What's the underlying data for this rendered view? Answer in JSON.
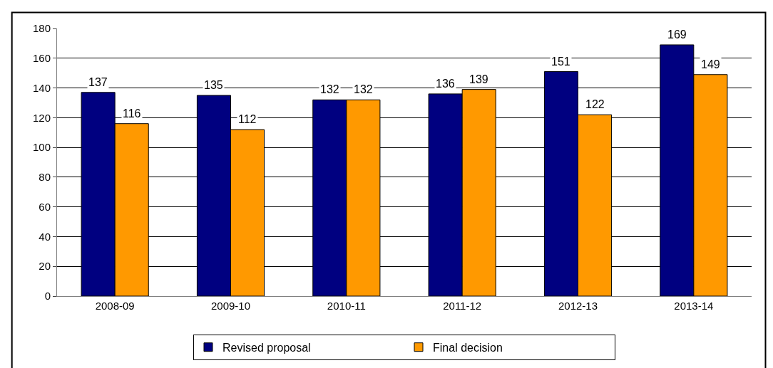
{
  "chart_data": {
    "type": "bar",
    "categories": [
      "2008-09",
      "2009-10",
      "2010-11",
      "2011-12",
      "2012-13",
      "2013-14"
    ],
    "series": [
      {
        "name": "Revised proposal",
        "color": "#000080",
        "values": [
          137,
          135,
          132,
          136,
          151,
          169
        ]
      },
      {
        "name": "Final decision",
        "color": "#ff9900",
        "values": [
          116,
          112,
          132,
          139,
          122,
          149
        ]
      }
    ],
    "ylim": [
      0,
      180
    ],
    "yticks": [
      0,
      20,
      40,
      60,
      80,
      100,
      120,
      140,
      160,
      180
    ],
    "grid": "y",
    "legend": "bottom",
    "data_labels": true
  }
}
